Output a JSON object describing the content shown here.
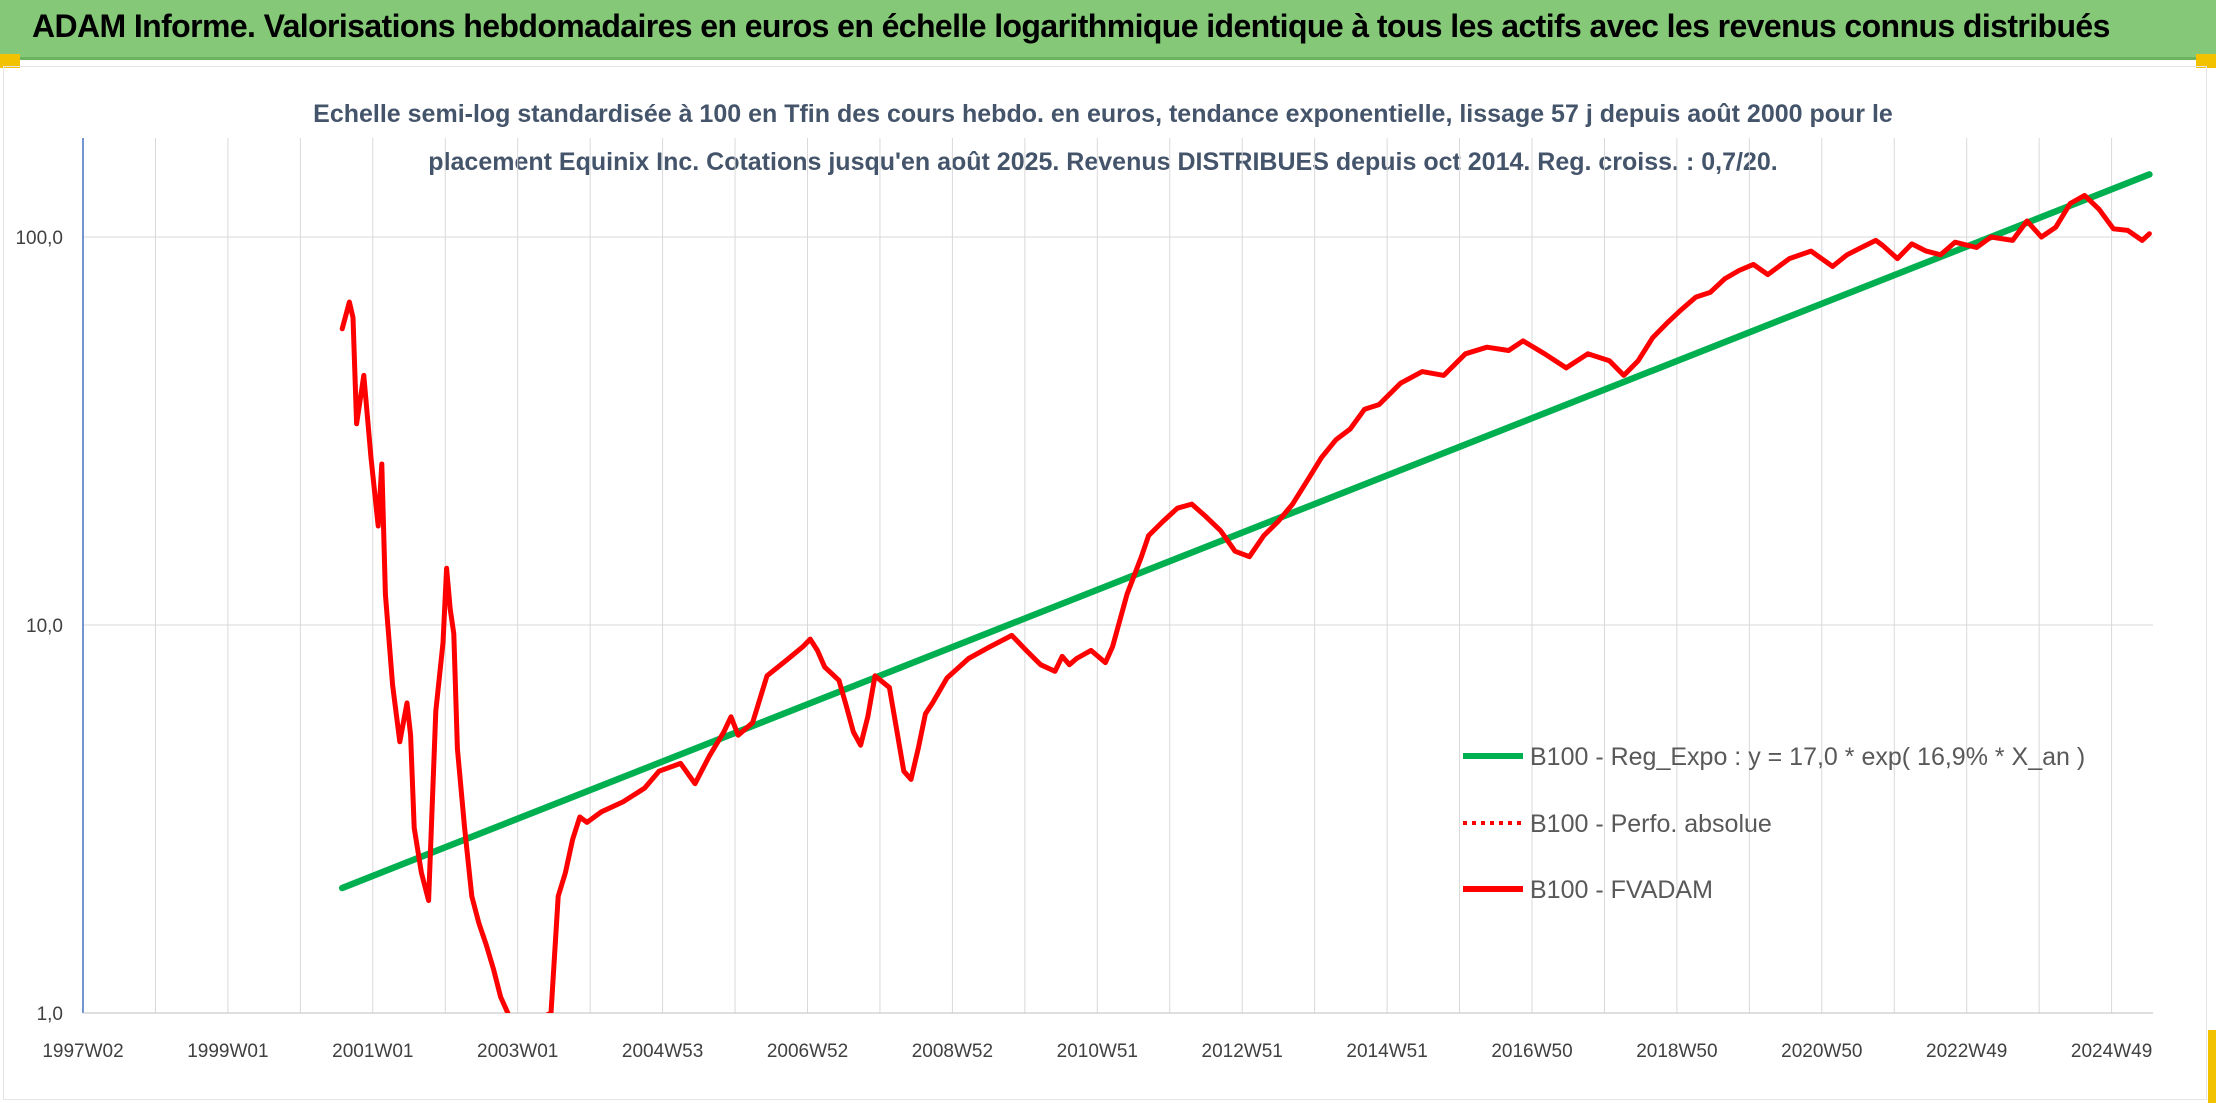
{
  "banner": {
    "title": "ADAM Informe. Valorisations hebdomadaires en euros en échelle logarithmique identique à tous les actifs avec les revenus connus distribués"
  },
  "colors": {
    "banner": "#84c878",
    "corner": "#f2c200",
    "trend": "#00b050",
    "series": "#ff0000",
    "subtitle": "#44546a"
  },
  "chart_data": {
    "type": "line",
    "title_lines": [
      "Echelle semi-log standardisée à 100 en Tfin des cours hebdo. en euros, tendance exponentielle, lissage 57 j depuis août 2000 pour le",
      "placement Equinix Inc. Cotations jusqu'en août 2025. Revenus DISTRIBUES depuis oct 2014. Reg. croiss. : 0,7/20."
    ],
    "y_scale": "log",
    "ylim": [
      1,
      180
    ],
    "y_ticks": [
      {
        "value": 1,
        "label": "1,0"
      },
      {
        "value": 10,
        "label": "10,0"
      },
      {
        "value": 100,
        "label": "100,0"
      }
    ],
    "x_ticks": [
      "1997W02",
      "1999W01",
      "2001W01",
      "2003W01",
      "2004W53",
      "2006W52",
      "2008W52",
      "2010W51",
      "2012W51",
      "2014W51",
      "2016W50",
      "2018W50",
      "2020W50",
      "2022W49",
      "2024W49"
    ],
    "xlim_year": [
      1997.0,
      2025.75
    ],
    "grid": true,
    "legend_position": "right",
    "series": [
      {
        "name": "B100 - Reg_Expo : y = 17,0 * exp( 16,9% *  X_an )",
        "color": "#00b050",
        "style": "solid",
        "x": [
          2000.6,
          2025.7
        ],
        "y": [
          2.1,
          145
        ]
      },
      {
        "name": "B100 - Perfo. absolue",
        "color": "#ff0000",
        "style": "dotted",
        "x": [],
        "y": []
      },
      {
        "name": "B100 - FVADAM",
        "color": "#ff0000",
        "style": "solid",
        "x": [
          2000.6,
          2000.7,
          2000.75,
          2000.8,
          2000.9,
          2001.0,
          2001.1,
          2001.15,
          2001.2,
          2001.3,
          2001.4,
          2001.5,
          2001.55,
          2001.6,
          2001.7,
          2001.8,
          2001.9,
          2002.0,
          2002.05,
          2002.1,
          2002.15,
          2002.2,
          2002.3,
          2002.4,
          2002.5,
          2002.6,
          2002.7,
          2002.8,
          2002.9,
          2003.0,
          2003.5,
          2003.6,
          2003.7,
          2003.8,
          2003.9,
          2004.0,
          2004.2,
          2004.5,
          2004.8,
          2005.0,
          2005.3,
          2005.5,
          2005.7,
          2005.9,
          2006.0,
          2006.1,
          2006.3,
          2006.5,
          2006.8,
          2007.0,
          2007.1,
          2007.2,
          2007.3,
          2007.5,
          2007.6,
          2007.7,
          2007.8,
          2007.9,
          2008.0,
          2008.2,
          2008.4,
          2008.5,
          2008.6,
          2008.7,
          2008.8,
          2009.0,
          2009.3,
          2009.6,
          2009.9,
          2010.1,
          2010.3,
          2010.5,
          2010.6,
          2010.7,
          2010.8,
          2011.0,
          2011.2,
          2011.3,
          2011.5,
          2011.7,
          2011.8,
          2012.0,
          2012.2,
          2012.4,
          2012.6,
          2012.8,
          2013.0,
          2013.2,
          2013.4,
          2013.6,
          2013.8,
          2014.0,
          2014.2,
          2014.4,
          2014.6,
          2014.8,
          2015.0,
          2015.3,
          2015.6,
          2015.9,
          2016.2,
          2016.5,
          2016.8,
          2017.0,
          2017.3,
          2017.6,
          2017.9,
          2018.2,
          2018.4,
          2018.6,
          2018.8,
          2019.0,
          2019.2,
          2019.4,
          2019.6,
          2019.8,
          2020.0,
          2020.2,
          2020.4,
          2020.7,
          2021.0,
          2021.3,
          2021.5,
          2021.7,
          2021.9,
          2022.0,
          2022.2,
          2022.4,
          2022.6,
          2022.8,
          2023.0,
          2023.3,
          2023.5,
          2023.8,
          2024.0,
          2024.2,
          2024.4,
          2024.6,
          2024.8,
          2025.0,
          2025.2,
          2025.4,
          2025.6,
          2025.7
        ],
        "y": [
          58,
          68,
          62,
          33,
          44,
          27,
          18,
          26,
          12,
          7.0,
          5.0,
          6.3,
          5.2,
          3.0,
          2.3,
          1.95,
          6.0,
          9.0,
          14.0,
          11.0,
          9.5,
          4.8,
          3.0,
          2.0,
          1.7,
          1.5,
          1.3,
          1.1,
          1.0,
          0.9,
          1.0,
          2.0,
          2.3,
          2.8,
          3.2,
          3.1,
          3.3,
          3.5,
          3.8,
          4.2,
          4.4,
          3.9,
          4.6,
          5.3,
          5.8,
          5.2,
          5.6,
          7.4,
          8.2,
          8.8,
          9.2,
          8.6,
          7.8,
          7.2,
          6.2,
          5.3,
          4.9,
          5.8,
          7.4,
          6.9,
          4.2,
          4.0,
          4.8,
          5.9,
          6.3,
          7.3,
          8.2,
          8.8,
          9.4,
          8.6,
          7.9,
          7.6,
          8.3,
          7.9,
          8.2,
          8.6,
          8.0,
          8.8,
          12.0,
          15.0,
          17.0,
          18.5,
          20.0,
          20.5,
          19.0,
          17.5,
          15.5,
          15.0,
          17.0,
          18.5,
          20.5,
          23.5,
          27.0,
          30.0,
          32.0,
          36.0,
          37.0,
          42.0,
          45.0,
          44.0,
          50.0,
          52.0,
          51.0,
          54.0,
          50.0,
          46.0,
          50.0,
          48.0,
          44.0,
          48.0,
          55.0,
          60.0,
          65.0,
          70.0,
          72.0,
          78.0,
          82.0,
          85.0,
          80.0,
          88.0,
          92.0,
          84.0,
          90.0,
          94.0,
          98.0,
          95.0,
          88.0,
          96.0,
          92.0,
          90.0,
          97.0,
          94.0,
          100.0,
          98.0,
          110.0,
          100.0,
          106.0,
          122.0,
          128.0,
          118.0,
          105.0,
          104.0,
          98.0,
          102.0
        ]
      }
    ]
  }
}
